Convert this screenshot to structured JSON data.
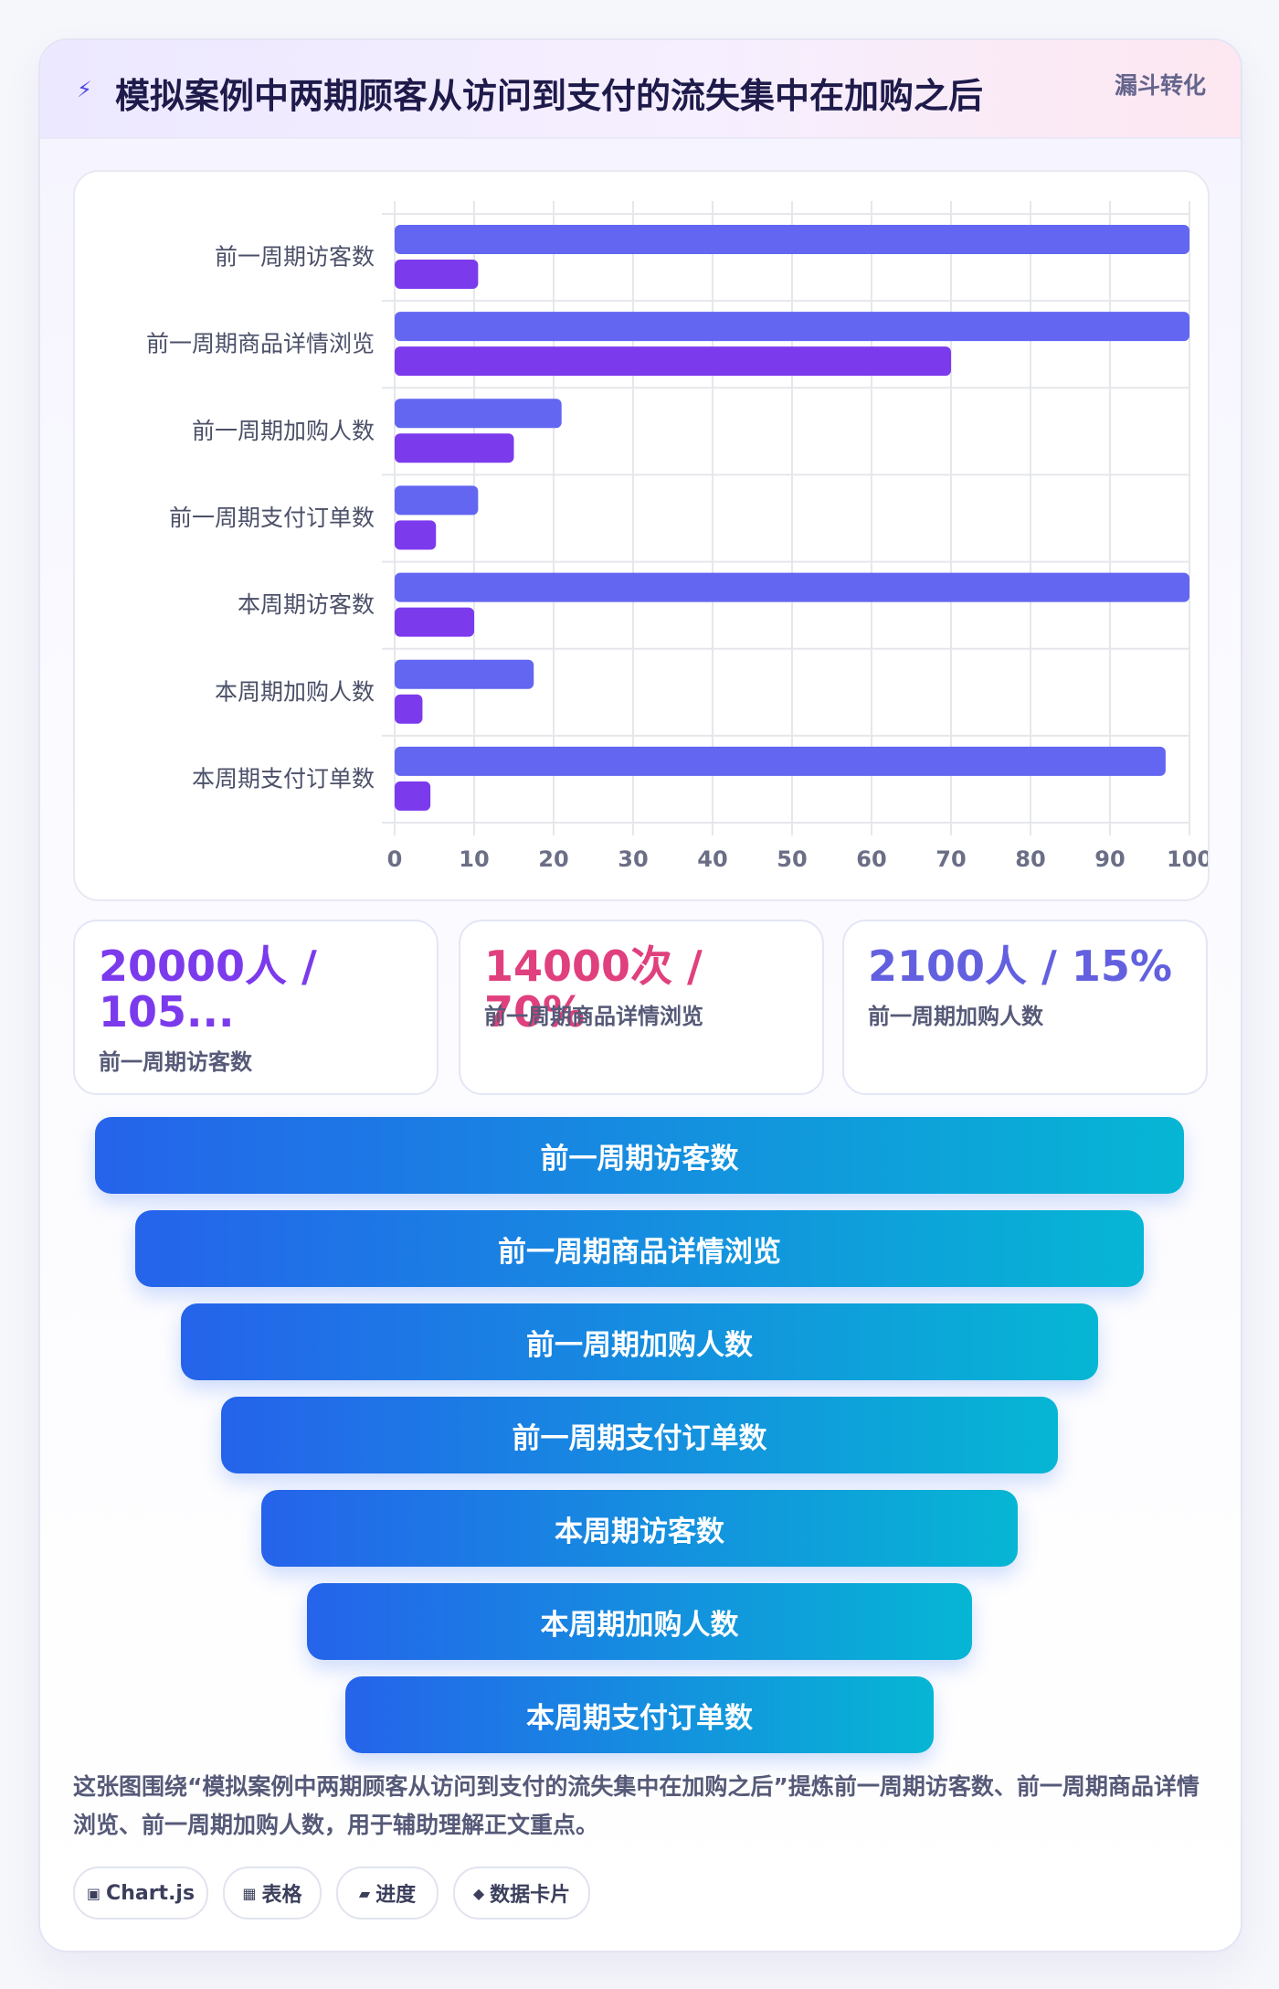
{
  "header": {
    "title": "模拟案例中两期顾客从访问到支付的流失集中在加购之后",
    "badge": "漏斗转化",
    "icon": "lightning-icon"
  },
  "colors": {
    "series_primary": "#6366f1",
    "series_secondary": "#7c3aed",
    "funnel_start": "#2563eb",
    "funnel_end": "#06b6d4",
    "stat1": "#7c3aed",
    "stat2": "#e0407d",
    "stat3": "#6360e0"
  },
  "chart_data": {
    "type": "bar",
    "orientation": "horizontal",
    "categories": [
      "前一周期访客数",
      "前一周期商品详情浏览",
      "前一周期加购人数",
      "前一周期支付订单数",
      "本周期访客数",
      "本周期加购人数",
      "本周期支付订单数"
    ],
    "series": [
      {
        "values": [
          100,
          100,
          21,
          10.5,
          100,
          17.5,
          97
        ]
      },
      {
        "values": [
          10.5,
          70,
          15,
          5.2,
          10,
          3.5,
          4.5
        ]
      }
    ],
    "xlim": [
      0,
      100
    ],
    "xticks": [
      "0",
      "10",
      "20",
      "30",
      "40",
      "50",
      "60",
      "70",
      "80",
      "90",
      "100"
    ],
    "grid": true,
    "legend": "none"
  },
  "stats": [
    {
      "value": "20000人 / 105...",
      "label": "前一周期访客数"
    },
    {
      "value": "14000次 / 70%",
      "label": "前一周期商品详情浏览"
    },
    {
      "value": "2100人 / 15%",
      "label": "前一周期加购人数"
    }
  ],
  "funnel": {
    "steps": [
      {
        "label": "前一周期访客数"
      },
      {
        "label": "前一周期商品详情浏览"
      },
      {
        "label": "前一周期加购人数"
      },
      {
        "label": "前一周期支付订单数"
      },
      {
        "label": "本周期访客数"
      },
      {
        "label": "本周期加购人数"
      },
      {
        "label": "本周期支付订单数"
      }
    ]
  },
  "description": "这张图围绕“模拟案例中两期顾客从访问到支付的流失集中在加购之后”提炼前一周期访客数、前一周期商品详情浏览、前一周期加购人数，用于辅助理解正文重点。",
  "chips": [
    {
      "icon": "▣",
      "label": "Chart.js",
      "icon_name": "chart-icon"
    },
    {
      "icon": "▦",
      "label": "表格",
      "icon_name": "table-icon"
    },
    {
      "icon": "▰",
      "label": "进度",
      "icon_name": "progress-icon"
    },
    {
      "icon": "◆",
      "label": "数据卡片",
      "icon_name": "card-icon"
    }
  ]
}
